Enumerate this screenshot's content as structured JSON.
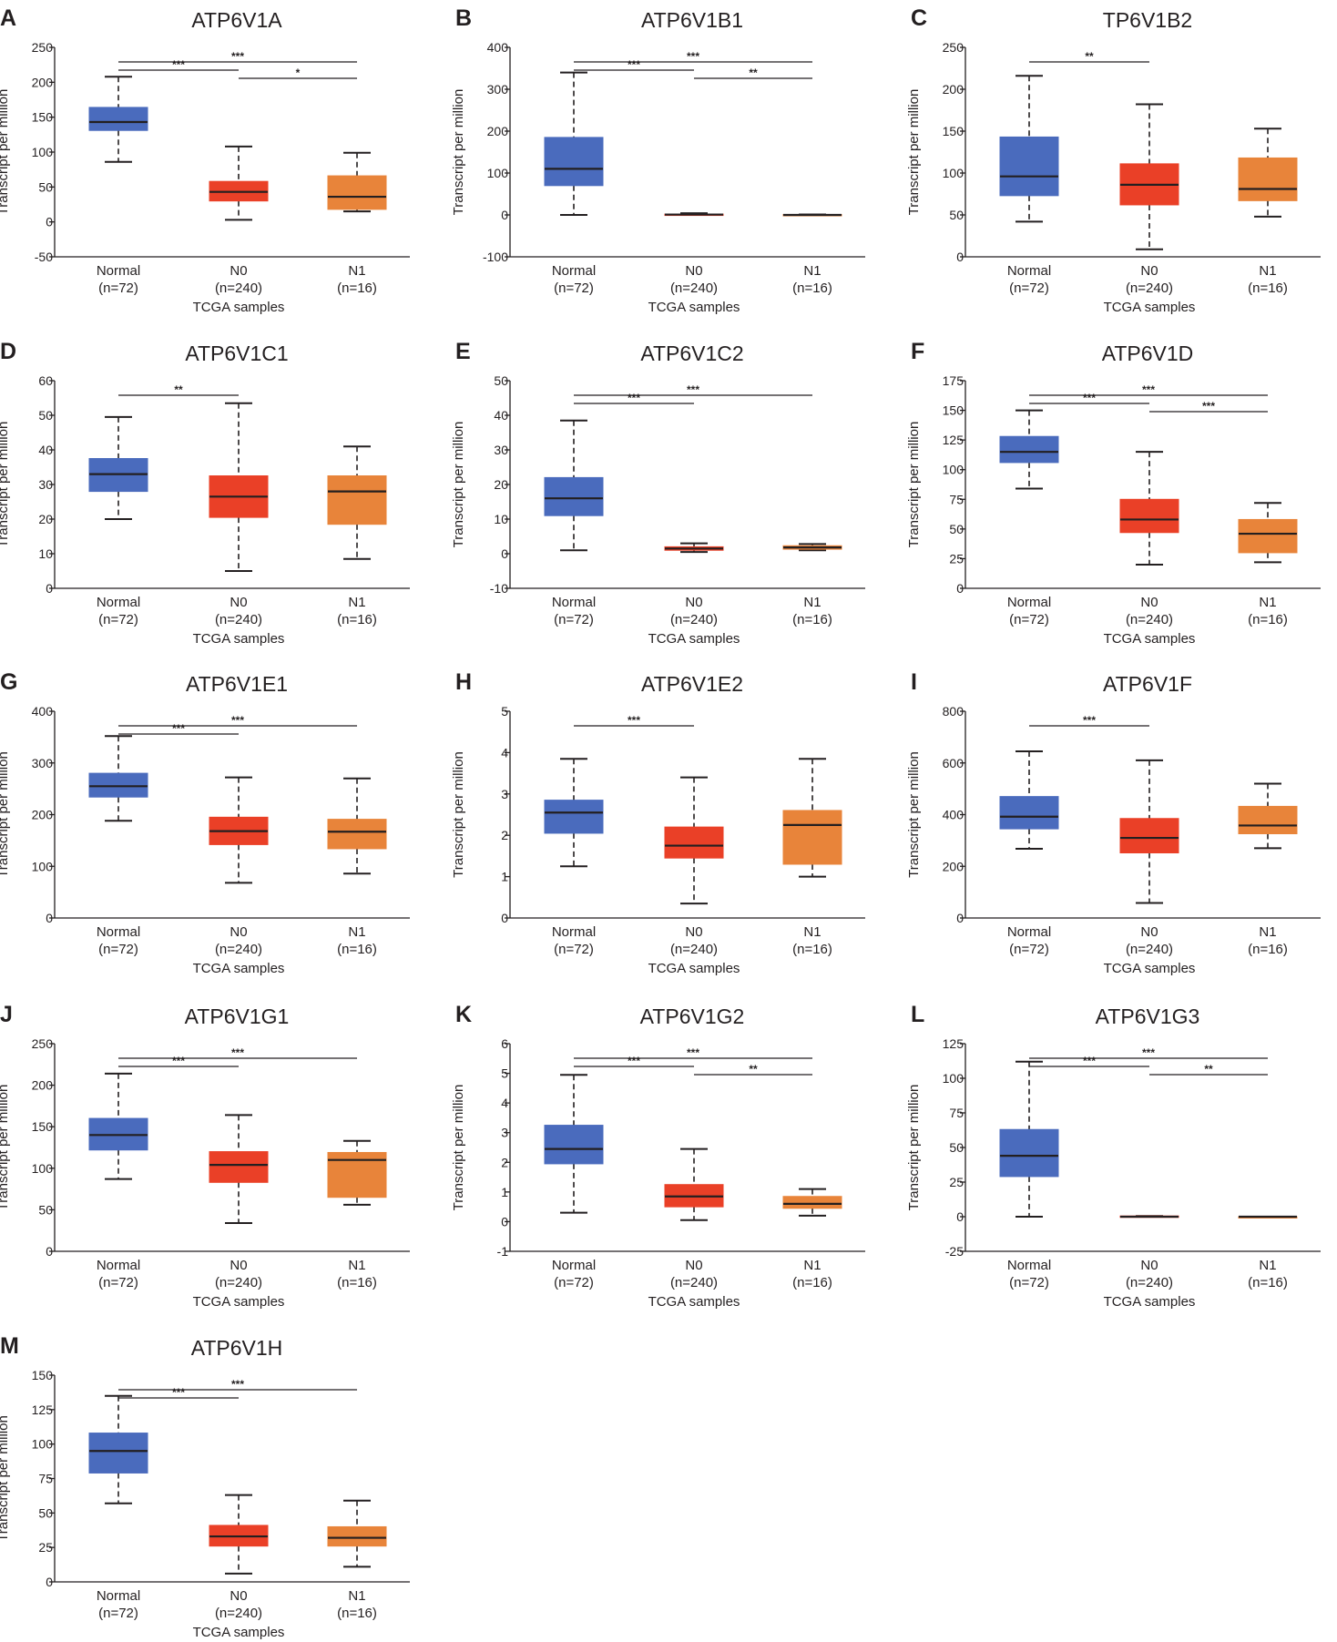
{
  "colors": {
    "Normal": "#4a6bbd",
    "N0": "#ea4027",
    "N1": "#e8843a",
    "text": "#231f20"
  },
  "xlabel": "TCGA samples",
  "ylabel": "Transcript per million",
  "chart_data": [
    {
      "type": "box",
      "panel": "A",
      "title": "ATP6V1A",
      "ylim": [
        -50,
        250
      ],
      "ticks": [
        -50,
        0,
        50,
        100,
        150,
        200,
        250
      ],
      "categories": [
        "Normal",
        "N0",
        "N1"
      ],
      "n_labels": [
        "(n=72)",
        "(n=240)",
        "(n=16)"
      ],
      "series": [
        {
          "name": "Normal",
          "min": 86,
          "q1": 131,
          "median": 143,
          "q3": 164,
          "max": 208
        },
        {
          "name": "N0",
          "min": 3,
          "q1": 30,
          "median": 43,
          "q3": 58,
          "max": 108
        },
        {
          "name": "N1",
          "min": 15,
          "q1": 18,
          "median": 36,
          "q3": 66,
          "max": 99
        }
      ],
      "significance": [
        {
          "from": 0,
          "to": 1,
          "label": "***"
        },
        {
          "from": 0,
          "to": 2,
          "label": "***"
        },
        {
          "from": 1,
          "to": 2,
          "label": "*"
        }
      ]
    },
    {
      "type": "box",
      "panel": "B",
      "title": "ATP6V1B1",
      "ylim": [
        -100,
        400
      ],
      "ticks": [
        -100,
        0,
        100,
        200,
        300,
        400
      ],
      "categories": [
        "Normal",
        "N0",
        "N1"
      ],
      "n_labels": [
        "(n=72)",
        "(n=240)",
        "(n=16)"
      ],
      "series": [
        {
          "name": "Normal",
          "min": 0,
          "q1": 70,
          "median": 110,
          "q3": 185,
          "max": 340
        },
        {
          "name": "N0",
          "min": 0,
          "q1": 0,
          "median": 1,
          "q3": 2,
          "max": 4
        },
        {
          "name": "N1",
          "min": 0,
          "q1": 0,
          "median": 0,
          "q3": 1,
          "max": 1
        }
      ],
      "significance": [
        {
          "from": 0,
          "to": 1,
          "label": "***"
        },
        {
          "from": 0,
          "to": 2,
          "label": "***"
        },
        {
          "from": 1,
          "to": 2,
          "label": "**"
        }
      ]
    },
    {
      "type": "box",
      "panel": "C",
      "title": "TP6V1B2",
      "ylim": [
        0,
        250
      ],
      "ticks": [
        0,
        50,
        100,
        150,
        200,
        250
      ],
      "categories": [
        "Normal",
        "N0",
        "N1"
      ],
      "n_labels": [
        "(n=72)",
        "(n=240)",
        "(n=16)"
      ],
      "series": [
        {
          "name": "Normal",
          "min": 42,
          "q1": 73,
          "median": 96,
          "q3": 143,
          "max": 216
        },
        {
          "name": "N0",
          "min": 9,
          "q1": 62,
          "median": 86,
          "q3": 111,
          "max": 182
        },
        {
          "name": "N1",
          "min": 48,
          "q1": 67,
          "median": 81,
          "q3": 118,
          "max": 153
        }
      ],
      "significance": [
        {
          "from": 0,
          "to": 1,
          "label": "**"
        }
      ]
    },
    {
      "type": "box",
      "panel": "D",
      "title": "ATP6V1C1",
      "ylim": [
        0,
        60
      ],
      "ticks": [
        0,
        10,
        20,
        30,
        40,
        50,
        60
      ],
      "categories": [
        "Normal",
        "N0",
        "N1"
      ],
      "n_labels": [
        "(n=72)",
        "(n=240)",
        "(n=16)"
      ],
      "series": [
        {
          "name": "Normal",
          "min": 20,
          "q1": 28,
          "median": 33,
          "q3": 37.5,
          "max": 49.5
        },
        {
          "name": "N0",
          "min": 5,
          "q1": 20.5,
          "median": 26.5,
          "q3": 32.5,
          "max": 53.5
        },
        {
          "name": "N1",
          "min": 8.5,
          "q1": 18.5,
          "median": 28,
          "q3": 32.5,
          "max": 41
        }
      ],
      "significance": [
        {
          "from": 0,
          "to": 1,
          "label": "**"
        }
      ]
    },
    {
      "type": "box",
      "panel": "E",
      "title": "ATP6V1C2",
      "ylim": [
        -10,
        50
      ],
      "ticks": [
        -10,
        0,
        10,
        20,
        30,
        40,
        50
      ],
      "categories": [
        "Normal",
        "N0",
        "N1"
      ],
      "n_labels": [
        "(n=72)",
        "(n=240)",
        "(n=16)"
      ],
      "series": [
        {
          "name": "Normal",
          "min": 1,
          "q1": 11,
          "median": 16,
          "q3": 22,
          "max": 38.5
        },
        {
          "name": "N0",
          "min": 0.5,
          "q1": 1,
          "median": 1.5,
          "q3": 2,
          "max": 3
        },
        {
          "name": "N1",
          "min": 1,
          "q1": 1.3,
          "median": 1.8,
          "q3": 2.3,
          "max": 2.8
        }
      ],
      "significance": [
        {
          "from": 0,
          "to": 1,
          "label": "***"
        },
        {
          "from": 0,
          "to": 2,
          "label": "***"
        }
      ]
    },
    {
      "type": "box",
      "panel": "F",
      "title": "ATP6V1D",
      "ylim": [
        0,
        175
      ],
      "ticks": [
        0,
        25,
        50,
        75,
        100,
        125,
        150,
        175
      ],
      "categories": [
        "Normal",
        "N0",
        "N1"
      ],
      "n_labels": [
        "(n=72)",
        "(n=240)",
        "(n=16)"
      ],
      "series": [
        {
          "name": "Normal",
          "min": 84,
          "q1": 106,
          "median": 115,
          "q3": 128,
          "max": 150
        },
        {
          "name": "N0",
          "min": 20,
          "q1": 47,
          "median": 58,
          "q3": 75,
          "max": 115
        },
        {
          "name": "N1",
          "min": 22,
          "q1": 30,
          "median": 46,
          "q3": 58,
          "max": 72
        }
      ],
      "significance": [
        {
          "from": 0,
          "to": 1,
          "label": "***"
        },
        {
          "from": 0,
          "to": 2,
          "label": "***"
        },
        {
          "from": 1,
          "to": 2,
          "label": "***"
        }
      ]
    },
    {
      "type": "box",
      "panel": "G",
      "title": "ATP6V1E1",
      "ylim": [
        0,
        400
      ],
      "ticks": [
        0,
        100,
        200,
        300,
        400
      ],
      "categories": [
        "Normal",
        "N0",
        "N1"
      ],
      "n_labels": [
        "(n=72)",
        "(n=240)",
        "(n=16)"
      ],
      "series": [
        {
          "name": "Normal",
          "min": 188,
          "q1": 234,
          "median": 255,
          "q3": 280,
          "max": 352
        },
        {
          "name": "N0",
          "min": 68,
          "q1": 142,
          "median": 168,
          "q3": 195,
          "max": 272
        },
        {
          "name": "N1",
          "min": 86,
          "q1": 134,
          "median": 167,
          "q3": 191,
          "max": 270
        }
      ],
      "significance": [
        {
          "from": 0,
          "to": 1,
          "label": "***"
        },
        {
          "from": 0,
          "to": 2,
          "label": "***"
        }
      ]
    },
    {
      "type": "box",
      "panel": "H",
      "title": "ATP6V1E2",
      "ylim": [
        0,
        5
      ],
      "ticks": [
        0,
        1,
        2,
        3,
        4,
        5
      ],
      "categories": [
        "Normal",
        "N0",
        "N1"
      ],
      "n_labels": [
        "(n=72)",
        "(n=240)",
        "(n=16)"
      ],
      "series": [
        {
          "name": "Normal",
          "min": 1.25,
          "q1": 2.05,
          "median": 2.55,
          "q3": 2.85,
          "max": 3.85
        },
        {
          "name": "N0",
          "min": 0.35,
          "q1": 1.45,
          "median": 1.75,
          "q3": 2.2,
          "max": 3.4
        },
        {
          "name": "N1",
          "min": 1,
          "q1": 1.3,
          "median": 2.25,
          "q3": 2.6,
          "max": 3.85
        }
      ],
      "significance": [
        {
          "from": 0,
          "to": 1,
          "label": "***"
        }
      ]
    },
    {
      "type": "box",
      "panel": "I",
      "title": "ATP6V1F",
      "ylim": [
        0,
        800
      ],
      "ticks": [
        0,
        200,
        400,
        600,
        800
      ],
      "categories": [
        "Normal",
        "N0",
        "N1"
      ],
      "n_labels": [
        "(n=72)",
        "(n=240)",
        "(n=16)"
      ],
      "series": [
        {
          "name": "Normal",
          "min": 268,
          "q1": 345,
          "median": 392,
          "q3": 470,
          "max": 645
        },
        {
          "name": "N0",
          "min": 58,
          "q1": 252,
          "median": 310,
          "q3": 385,
          "max": 610
        },
        {
          "name": "N1",
          "min": 270,
          "q1": 326,
          "median": 358,
          "q3": 432,
          "max": 520
        }
      ],
      "significance": [
        {
          "from": 0,
          "to": 1,
          "label": "***"
        }
      ]
    },
    {
      "type": "box",
      "panel": "J",
      "title": "ATP6V1G1",
      "ylim": [
        0,
        250
      ],
      "ticks": [
        0,
        50,
        100,
        150,
        200,
        250
      ],
      "categories": [
        "Normal",
        "N0",
        "N1"
      ],
      "n_labels": [
        "(n=72)",
        "(n=240)",
        "(n=16)"
      ],
      "series": [
        {
          "name": "Normal",
          "min": 87,
          "q1": 122,
          "median": 140,
          "q3": 160,
          "max": 214
        },
        {
          "name": "N0",
          "min": 34,
          "q1": 83,
          "median": 104,
          "q3": 120,
          "max": 164
        },
        {
          "name": "N1",
          "min": 56,
          "q1": 65,
          "median": 110,
          "q3": 119,
          "max": 133
        }
      ],
      "significance": [
        {
          "from": 0,
          "to": 1,
          "label": "***"
        },
        {
          "from": 0,
          "to": 2,
          "label": "***"
        }
      ]
    },
    {
      "type": "box",
      "panel": "K",
      "title": "ATP6V1G2",
      "ylim": [
        -1,
        6
      ],
      "ticks": [
        -1,
        0,
        1,
        2,
        3,
        4,
        5,
        6
      ],
      "categories": [
        "Normal",
        "N0",
        "N1"
      ],
      "n_labels": [
        "(n=72)",
        "(n=240)",
        "(n=16)"
      ],
      "series": [
        {
          "name": "Normal",
          "min": 0.3,
          "q1": 1.95,
          "median": 2.45,
          "q3": 3.25,
          "max": 4.95
        },
        {
          "name": "N0",
          "min": 0.05,
          "q1": 0.5,
          "median": 0.85,
          "q3": 1.25,
          "max": 2.45
        },
        {
          "name": "N1",
          "min": 0.2,
          "q1": 0.45,
          "median": 0.6,
          "q3": 0.85,
          "max": 1.1
        }
      ],
      "significance": [
        {
          "from": 0,
          "to": 1,
          "label": "***"
        },
        {
          "from": 0,
          "to": 2,
          "label": "***"
        },
        {
          "from": 1,
          "to": 2,
          "label": "**"
        }
      ]
    },
    {
      "type": "box",
      "panel": "L",
      "title": "ATP6V1G3",
      "ylim": [
        -25,
        125
      ],
      "ticks": [
        -25,
        0,
        25,
        50,
        75,
        100,
        125
      ],
      "categories": [
        "Normal",
        "N0",
        "N1"
      ],
      "n_labels": [
        "(n=72)",
        "(n=240)",
        "(n=16)"
      ],
      "series": [
        {
          "name": "Normal",
          "min": 0,
          "q1": 29,
          "median": 44,
          "q3": 63,
          "max": 112
        },
        {
          "name": "N0",
          "min": 0,
          "q1": 0,
          "median": 0,
          "q3": 0.5,
          "max": 0.5
        },
        {
          "name": "N1",
          "min": 0,
          "q1": 0,
          "median": 0,
          "q3": 0,
          "max": 0
        }
      ],
      "significance": [
        {
          "from": 0,
          "to": 1,
          "label": "***"
        },
        {
          "from": 0,
          "to": 2,
          "label": "***"
        },
        {
          "from": 1,
          "to": 2,
          "label": "**"
        }
      ]
    },
    {
      "type": "box",
      "panel": "M",
      "title": "ATP6V1H",
      "ylim": [
        0,
        150
      ],
      "ticks": [
        0,
        25,
        50,
        75,
        100,
        125,
        150
      ],
      "categories": [
        "Normal",
        "N0",
        "N1"
      ],
      "n_labels": [
        "(n=72)",
        "(n=240)",
        "(n=16)"
      ],
      "series": [
        {
          "name": "Normal",
          "min": 57,
          "q1": 79,
          "median": 95,
          "q3": 108,
          "max": 135
        },
        {
          "name": "N0",
          "min": 6,
          "q1": 26,
          "median": 33,
          "q3": 41,
          "max": 63
        },
        {
          "name": "N1",
          "min": 11,
          "q1": 26,
          "median": 32,
          "q3": 40,
          "max": 59
        }
      ],
      "significance": [
        {
          "from": 0,
          "to": 1,
          "label": "***"
        },
        {
          "from": 0,
          "to": 2,
          "label": "***"
        }
      ]
    }
  ]
}
